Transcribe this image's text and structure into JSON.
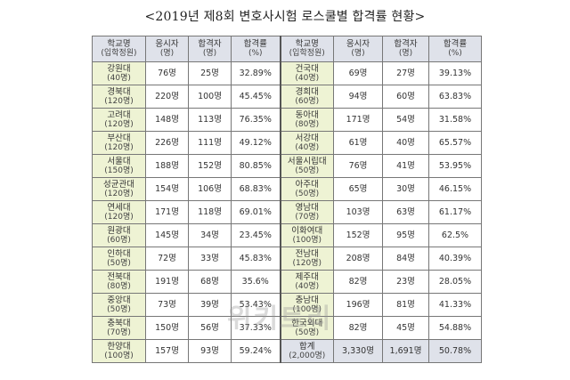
{
  "title": "<2019년 제8회 변호사시험 로스쿨별 합격률 현황>",
  "headers": {
    "school": "학교명",
    "quota": "(입학정원)",
    "applicants": "응시자",
    "applicants_unit": "(명)",
    "passed": "합격자",
    "passed_unit": "(명)",
    "rate": "합격률",
    "rate_unit": "(%)"
  },
  "left_rows": [
    {
      "name": "강원대",
      "quota": "(40명)",
      "applicants": "76명",
      "passed": "25명",
      "rate": "32.89%"
    },
    {
      "name": "경북대",
      "quota": "(120명)",
      "applicants": "220명",
      "passed": "100명",
      "rate": "45.45%"
    },
    {
      "name": "고려대",
      "quota": "(120명)",
      "applicants": "148명",
      "passed": "113명",
      "rate": "76.35%"
    },
    {
      "name": "부산대",
      "quota": "(120명)",
      "applicants": "226명",
      "passed": "111명",
      "rate": "49.12%"
    },
    {
      "name": "서울대",
      "quota": "(150명)",
      "applicants": "188명",
      "passed": "152명",
      "rate": "80.85%"
    },
    {
      "name": "성균관대",
      "quota": "(120명)",
      "applicants": "154명",
      "passed": "106명",
      "rate": "68.83%"
    },
    {
      "name": "연세대",
      "quota": "(120명)",
      "applicants": "171명",
      "passed": "118명",
      "rate": "69.01%"
    },
    {
      "name": "원광대",
      "quota": "(60명)",
      "applicants": "145명",
      "passed": "34명",
      "rate": "23.45%"
    },
    {
      "name": "인하대",
      "quota": "(50명)",
      "applicants": "72명",
      "passed": "33명",
      "rate": "45.83%"
    },
    {
      "name": "전북대",
      "quota": "(80명)",
      "applicants": "191명",
      "passed": "68명",
      "rate": "35.6%"
    },
    {
      "name": "중앙대",
      "quota": "(50명)",
      "applicants": "73명",
      "passed": "39명",
      "rate": "53.43%"
    },
    {
      "name": "충북대",
      "quota": "(70명)",
      "applicants": "150명",
      "passed": "56명",
      "rate": "37.33%"
    },
    {
      "name": "한양대",
      "quota": "(100명)",
      "applicants": "157명",
      "passed": "93명",
      "rate": "59.24%"
    }
  ],
  "right_rows": [
    {
      "name": "건국대",
      "quota": "(40명)",
      "applicants": "69명",
      "passed": "27명",
      "rate": "39.13%"
    },
    {
      "name": "경희대",
      "quota": "(60명)",
      "applicants": "94명",
      "passed": "60명",
      "rate": "63.83%"
    },
    {
      "name": "동아대",
      "quota": "(80명)",
      "applicants": "171명",
      "passed": "54명",
      "rate": "31.58%"
    },
    {
      "name": "서강대",
      "quota": "(40명)",
      "applicants": "61명",
      "passed": "40명",
      "rate": "65.57%"
    },
    {
      "name": "서울시립대",
      "quota": "(50명)",
      "applicants": "76명",
      "passed": "41명",
      "rate": "53.95%"
    },
    {
      "name": "아주대",
      "quota": "(50명)",
      "applicants": "65명",
      "passed": "30명",
      "rate": "46.15%"
    },
    {
      "name": "영남대",
      "quota": "(70명)",
      "applicants": "103명",
      "passed": "63명",
      "rate": "61.17%"
    },
    {
      "name": "이화여대",
      "quota": "(100명)",
      "applicants": "152명",
      "passed": "95명",
      "rate": "62.5%"
    },
    {
      "name": "전남대",
      "quota": "(120명)",
      "applicants": "208명",
      "passed": "84명",
      "rate": "40.39%"
    },
    {
      "name": "제주대",
      "quota": "(40명)",
      "applicants": "82명",
      "passed": "23명",
      "rate": "28.05%"
    },
    {
      "name": "충남대",
      "quota": "(100명)",
      "applicants": "196명",
      "passed": "81명",
      "rate": "41.33%"
    },
    {
      "name": "한국외대",
      "quota": "(50명)",
      "applicants": "82명",
      "passed": "45명",
      "rate": "54.88%"
    }
  ],
  "total": {
    "name": "합계",
    "quota": "(2,000명)",
    "applicants": "3,330명",
    "passed": "1,691명",
    "rate": "50.78%"
  },
  "watermark": "위키트리"
}
